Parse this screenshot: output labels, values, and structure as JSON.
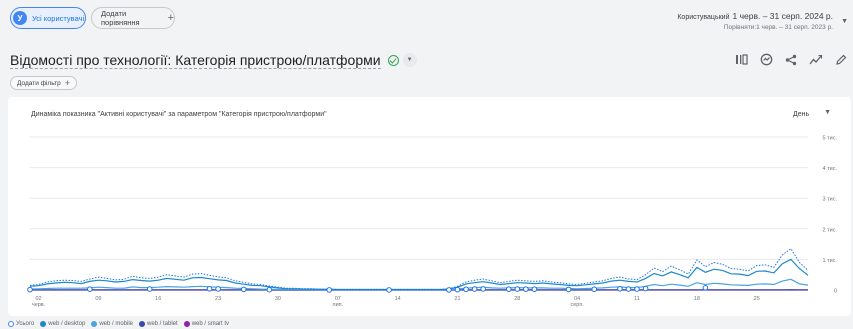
{
  "segment": {
    "badge": "У",
    "label": "Усі користувачі"
  },
  "compare": {
    "label": "Додати порівняння",
    "plus": "+"
  },
  "date_range": {
    "prefix": "Користувацький",
    "range": "1 черв. – 31 серп. 2024 р.",
    "compare_line": "Порівняти:1 черв. – 31 серп. 2023 р."
  },
  "report": {
    "title": "Відомості про технології: Категорія пристрою/платформи"
  },
  "filter": {
    "label": "Додати фільтр",
    "plus": "+"
  },
  "card": {
    "title": "Динаміка показника \"Активні користувачі\" за параметром \"Категорія пристрою/платформи\"",
    "granularity": "День"
  },
  "icons": {
    "segment": "user-badge-icon",
    "verified": "check-circle-icon",
    "dropdown": "chevron-down-icon",
    "compare_chart": "bar-compare-icon",
    "insights": "insights-icon",
    "share": "share-icon",
    "trend": "trend-icon",
    "edit": "pencil-icon"
  },
  "colors": {
    "accent": "#1a73e8",
    "total": "#1a73e8",
    "desktop": "#1e88c8",
    "mobile": "#4ba3e0",
    "tablet": "#3949ab",
    "smart_tv": "#8e24aa"
  },
  "chart_data": {
    "type": "line",
    "y_ticks": [
      "5 тис.",
      "4 тис.",
      "3 тис.",
      "2 тис.",
      "1 тис.",
      "0"
    ],
    "ylim": [
      0,
      5000
    ],
    "x_ticks": [
      {
        "l1": "02",
        "l2": "черв."
      },
      {
        "l1": "09",
        "l2": ""
      },
      {
        "l1": "16",
        "l2": ""
      },
      {
        "l1": "23",
        "l2": ""
      },
      {
        "l1": "30",
        "l2": ""
      },
      {
        "l1": "07",
        "l2": "лип."
      },
      {
        "l1": "14",
        "l2": ""
      },
      {
        "l1": "21",
        "l2": ""
      },
      {
        "l1": "28",
        "l2": ""
      },
      {
        "l1": "04",
        "l2": "серп."
      },
      {
        "l1": "11",
        "l2": ""
      },
      {
        "l1": "18",
        "l2": ""
      },
      {
        "l1": "25",
        "l2": ""
      }
    ],
    "x_start_day_offset": 0,
    "days": 92,
    "grid": true,
    "legend_position": "bottom-left",
    "series": [
      {
        "name": "Усього",
        "style": "dotted",
        "values": [
          150,
          180,
          260,
          300,
          320,
          310,
          280,
          360,
          420,
          380,
          330,
          350,
          450,
          400,
          380,
          420,
          500,
          460,
          420,
          520,
          540,
          480,
          430,
          400,
          300,
          250,
          200,
          180,
          130,
          90,
          60,
          60,
          40,
          40,
          30,
          30,
          20,
          20,
          20,
          20,
          20,
          20,
          20,
          20,
          20,
          20,
          20,
          20,
          20,
          40,
          120,
          260,
          320,
          360,
          300,
          240,
          280,
          320,
          300,
          280,
          300,
          260,
          240,
          200,
          180,
          220,
          260,
          300,
          380,
          420,
          360,
          340,
          500,
          720,
          600,
          780,
          660,
          520,
          980,
          760,
          900,
          840,
          700,
          680,
          620,
          800,
          820,
          740,
          1150,
          1350,
          900,
          640
        ]
      },
      {
        "name": "web / desktop",
        "style": "solid",
        "values": [
          120,
          140,
          200,
          230,
          250,
          240,
          210,
          280,
          320,
          300,
          260,
          280,
          340,
          310,
          290,
          320,
          380,
          350,
          320,
          400,
          410,
          370,
          330,
          310,
          230,
          190,
          150,
          140,
          100,
          70,
          40,
          40,
          30,
          30,
          20,
          20,
          15,
          15,
          15,
          15,
          15,
          15,
          15,
          15,
          15,
          15,
          15,
          15,
          15,
          30,
          90,
          200,
          240,
          270,
          230,
          180,
          210,
          240,
          230,
          210,
          230,
          200,
          180,
          150,
          140,
          170,
          200,
          230,
          290,
          320,
          280,
          260,
          380,
          540,
          460,
          590,
          500,
          400,
          740,
          580,
          680,
          640,
          530,
          520,
          470,
          610,
          620,
          560,
          860,
          1000,
          700,
          480
        ]
      },
      {
        "name": "web / mobile",
        "style": "solid",
        "values": [
          30,
          40,
          50,
          60,
          60,
          60,
          60,
          70,
          90,
          80,
          60,
          60,
          100,
          80,
          80,
          90,
          110,
          100,
          90,
          110,
          120,
          100,
          90,
          80,
          60,
          50,
          40,
          30,
          25,
          15,
          15,
          15,
          10,
          10,
          8,
          8,
          5,
          5,
          5,
          5,
          5,
          5,
          5,
          5,
          5,
          5,
          5,
          5,
          5,
          10,
          30,
          60,
          80,
          90,
          70,
          60,
          70,
          80,
          70,
          70,
          70,
          60,
          60,
          50,
          40,
          50,
          60,
          70,
          90,
          100,
          80,
          80,
          120,
          180,
          140,
          190,
          160,
          120,
          240,
          180,
          220,
          200,
          170,
          160,
          150,
          190,
          200,
          180,
          290,
          350,
          200,
          160
        ]
      },
      {
        "name": "web / tablet",
        "style": "solid",
        "values": [
          2,
          2,
          3,
          3,
          3,
          3,
          3,
          3,
          4,
          4,
          3,
          3,
          4,
          4,
          4,
          4,
          5,
          4,
          4,
          5,
          5,
          5,
          4,
          4,
          3,
          3,
          2,
          2,
          2,
          1,
          1,
          1,
          1,
          1,
          1,
          1,
          0,
          0,
          0,
          0,
          0,
          0,
          0,
          0,
          0,
          0,
          0,
          0,
          0,
          1,
          2,
          3,
          3,
          4,
          3,
          3,
          3,
          3,
          3,
          3,
          3,
          3,
          3,
          2,
          2,
          3,
          3,
          3,
          4,
          4,
          4,
          4,
          5,
          6,
          5,
          6,
          6,
          5,
          7,
          6,
          7,
          6,
          6,
          6,
          5,
          6,
          6,
          6,
          8,
          9,
          7,
          5
        ]
      },
      {
        "name": "web / smart tv",
        "style": "solid",
        "values": [
          0,
          0,
          0,
          0,
          0,
          0,
          0,
          0,
          0,
          0,
          0,
          0,
          0,
          0,
          0,
          0,
          0,
          0,
          0,
          0,
          0,
          0,
          0,
          0,
          0,
          0,
          0,
          0,
          0,
          0,
          0,
          0,
          0,
          0,
          0,
          0,
          0,
          0,
          0,
          0,
          0,
          0,
          0,
          0,
          0,
          0,
          0,
          0,
          0,
          0,
          0,
          0,
          0,
          0,
          0,
          0,
          0,
          0,
          0,
          0,
          0,
          0,
          0,
          0,
          0,
          0,
          0,
          0,
          0,
          0,
          0,
          0,
          0,
          0,
          0,
          0,
          0,
          0,
          0,
          0,
          0,
          0,
          0,
          0,
          0,
          0,
          0,
          0,
          0,
          0,
          0,
          0
        ]
      }
    ],
    "compare_markers": [
      0,
      7,
      14,
      21,
      22,
      25,
      28,
      35,
      42,
      49,
      50,
      51,
      52,
      53,
      56,
      57,
      58,
      59,
      63,
      66,
      69,
      70,
      71,
      72,
      79
    ]
  }
}
